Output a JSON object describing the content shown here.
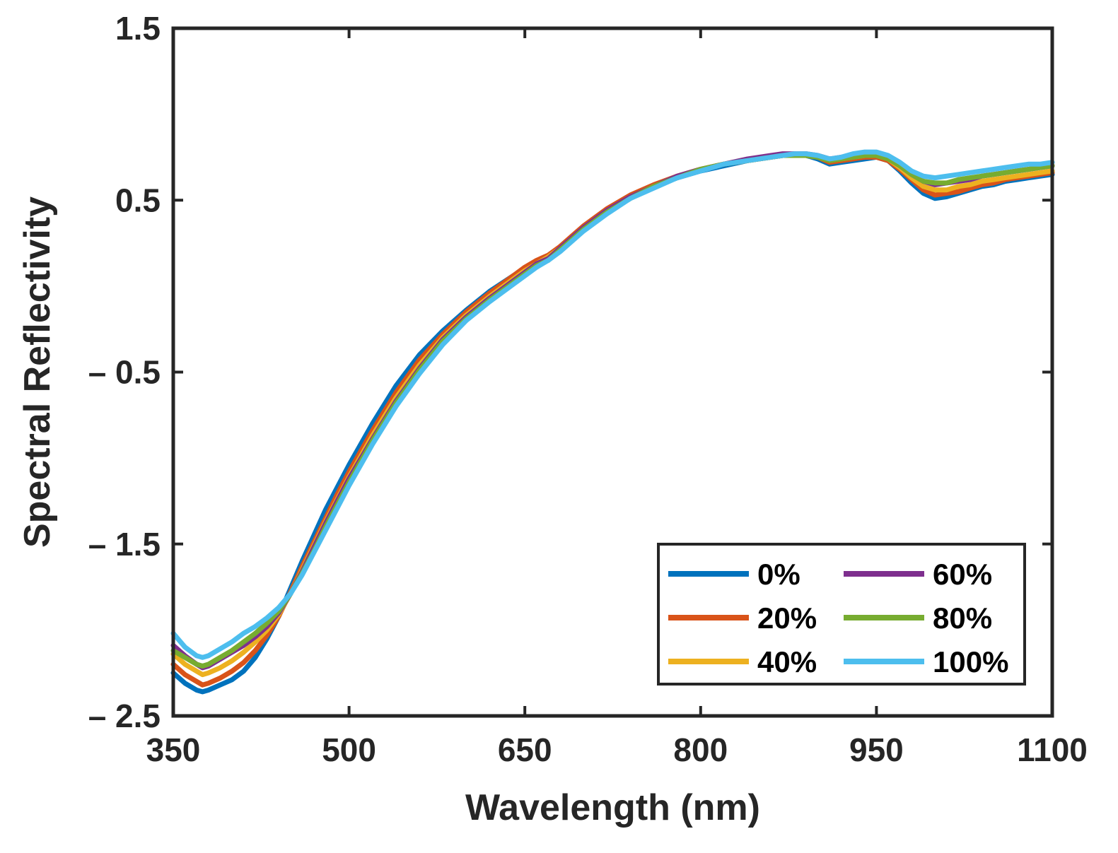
{
  "chart_data": {
    "type": "line",
    "xlabel": "Wavelength (nm)",
    "ylabel": "Spectral Reflectivity",
    "xlim": [
      350,
      1100
    ],
    "ylim": [
      -2.5,
      1.5
    ],
    "x_ticks": [
      350,
      500,
      650,
      800,
      950,
      1100
    ],
    "x_tick_labels": [
      "350",
      "500",
      "650",
      "800",
      "950",
      "1100"
    ],
    "y_ticks": [
      1.5,
      0.5,
      -0.5,
      -1.5,
      -2.5
    ],
    "y_tick_labels": [
      "1.5",
      "0.5",
      "– 0.5",
      "– 1.5",
      "– 2.5"
    ],
    "grid": false,
    "legend_position": "bottom-right",
    "legend_columns": 2,
    "x": [
      350,
      360,
      370,
      375,
      380,
      390,
      400,
      410,
      420,
      430,
      440,
      450,
      460,
      470,
      480,
      490,
      500,
      520,
      540,
      560,
      580,
      600,
      620,
      640,
      650,
      660,
      670,
      680,
      690,
      700,
      720,
      740,
      760,
      780,
      800,
      820,
      840,
      860,
      870,
      880,
      890,
      900,
      910,
      920,
      930,
      940,
      950,
      960,
      970,
      980,
      990,
      1000,
      1010,
      1020,
      1030,
      1040,
      1050,
      1060,
      1070,
      1080,
      1090,
      1100
    ],
    "series": [
      {
        "name": "0%",
        "color": "#0072bd",
        "values": [
          -2.25,
          -2.31,
          -2.35,
          -2.36,
          -2.35,
          -2.32,
          -2.29,
          -2.24,
          -2.16,
          -2.05,
          -1.92,
          -1.76,
          -1.6,
          -1.45,
          -1.3,
          -1.17,
          -1.04,
          -0.8,
          -0.58,
          -0.4,
          -0.26,
          -0.14,
          -0.03,
          0.06,
          0.1,
          0.14,
          0.17,
          0.22,
          0.28,
          0.34,
          0.44,
          0.52,
          0.58,
          0.63,
          0.67,
          0.7,
          0.73,
          0.75,
          0.76,
          0.77,
          0.76,
          0.74,
          0.71,
          0.72,
          0.73,
          0.74,
          0.75,
          0.73,
          0.67,
          0.6,
          0.54,
          0.51,
          0.52,
          0.54,
          0.56,
          0.58,
          0.59,
          0.61,
          0.62,
          0.63,
          0.64,
          0.65
        ]
      },
      {
        "name": "20%",
        "color": "#d95319",
        "values": [
          -2.2,
          -2.26,
          -2.3,
          -2.32,
          -2.31,
          -2.28,
          -2.24,
          -2.19,
          -2.12,
          -2.03,
          -1.92,
          -1.78,
          -1.63,
          -1.49,
          -1.35,
          -1.21,
          -1.08,
          -0.84,
          -0.62,
          -0.43,
          -0.28,
          -0.15,
          -0.04,
          0.06,
          0.11,
          0.15,
          0.18,
          0.23,
          0.29,
          0.35,
          0.45,
          0.53,
          0.59,
          0.64,
          0.68,
          0.71,
          0.73,
          0.75,
          0.76,
          0.77,
          0.76,
          0.75,
          0.72,
          0.73,
          0.74,
          0.75,
          0.75,
          0.73,
          0.68,
          0.62,
          0.56,
          0.53,
          0.54,
          0.55,
          0.57,
          0.59,
          0.6,
          0.62,
          0.63,
          0.64,
          0.65,
          0.66
        ]
      },
      {
        "name": "40%",
        "color": "#edb120",
        "values": [
          -2.14,
          -2.2,
          -2.24,
          -2.26,
          -2.25,
          -2.22,
          -2.18,
          -2.13,
          -2.07,
          -2.0,
          -1.91,
          -1.79,
          -1.65,
          -1.51,
          -1.37,
          -1.24,
          -1.11,
          -0.87,
          -0.65,
          -0.46,
          -0.3,
          -0.17,
          -0.06,
          0.04,
          0.09,
          0.13,
          0.17,
          0.22,
          0.28,
          0.34,
          0.44,
          0.52,
          0.58,
          0.64,
          0.68,
          0.71,
          0.73,
          0.75,
          0.76,
          0.77,
          0.76,
          0.75,
          0.73,
          0.74,
          0.75,
          0.76,
          0.76,
          0.74,
          0.69,
          0.63,
          0.58,
          0.56,
          0.56,
          0.58,
          0.59,
          0.61,
          0.62,
          0.63,
          0.64,
          0.65,
          0.66,
          0.67
        ]
      },
      {
        "name": "60%",
        "color": "#7e2f8e",
        "values": [
          -2.09,
          -2.15,
          -2.2,
          -2.22,
          -2.21,
          -2.17,
          -2.13,
          -2.09,
          -2.04,
          -1.98,
          -1.9,
          -1.79,
          -1.66,
          -1.52,
          -1.38,
          -1.25,
          -1.12,
          -0.89,
          -0.67,
          -0.48,
          -0.31,
          -0.18,
          -0.07,
          0.03,
          0.08,
          0.13,
          0.16,
          0.22,
          0.28,
          0.34,
          0.44,
          0.52,
          0.58,
          0.64,
          0.68,
          0.71,
          0.74,
          0.76,
          0.77,
          0.77,
          0.77,
          0.76,
          0.74,
          0.75,
          0.76,
          0.77,
          0.77,
          0.75,
          0.7,
          0.65,
          0.61,
          0.59,
          0.6,
          0.61,
          0.62,
          0.64,
          0.65,
          0.66,
          0.67,
          0.68,
          0.69,
          0.7
        ]
      },
      {
        "name": "80%",
        "color": "#77ac30",
        "values": [
          -2.12,
          -2.16,
          -2.2,
          -2.21,
          -2.2,
          -2.16,
          -2.12,
          -2.07,
          -2.02,
          -1.96,
          -1.89,
          -1.79,
          -1.67,
          -1.54,
          -1.4,
          -1.27,
          -1.14,
          -0.9,
          -0.68,
          -0.49,
          -0.32,
          -0.19,
          -0.08,
          0.02,
          0.07,
          0.12,
          0.15,
          0.21,
          0.27,
          0.33,
          0.43,
          0.51,
          0.58,
          0.63,
          0.68,
          0.71,
          0.73,
          0.75,
          0.76,
          0.76,
          0.76,
          0.75,
          0.73,
          0.74,
          0.75,
          0.76,
          0.76,
          0.74,
          0.7,
          0.65,
          0.61,
          0.6,
          0.6,
          0.62,
          0.63,
          0.64,
          0.65,
          0.66,
          0.67,
          0.68,
          0.69,
          0.7
        ]
      },
      {
        "name": "100%",
        "color": "#4dbeee",
        "values": [
          -2.02,
          -2.1,
          -2.15,
          -2.16,
          -2.15,
          -2.11,
          -2.07,
          -2.02,
          -1.98,
          -1.93,
          -1.87,
          -1.79,
          -1.68,
          -1.55,
          -1.42,
          -1.29,
          -1.16,
          -0.92,
          -0.7,
          -0.51,
          -0.34,
          -0.2,
          -0.09,
          0.01,
          0.06,
          0.11,
          0.15,
          0.2,
          0.26,
          0.32,
          0.42,
          0.51,
          0.57,
          0.63,
          0.67,
          0.71,
          0.73,
          0.75,
          0.76,
          0.77,
          0.77,
          0.76,
          0.74,
          0.75,
          0.77,
          0.78,
          0.78,
          0.76,
          0.72,
          0.67,
          0.64,
          0.63,
          0.64,
          0.65,
          0.66,
          0.67,
          0.68,
          0.69,
          0.7,
          0.71,
          0.71,
          0.72
        ]
      }
    ]
  }
}
